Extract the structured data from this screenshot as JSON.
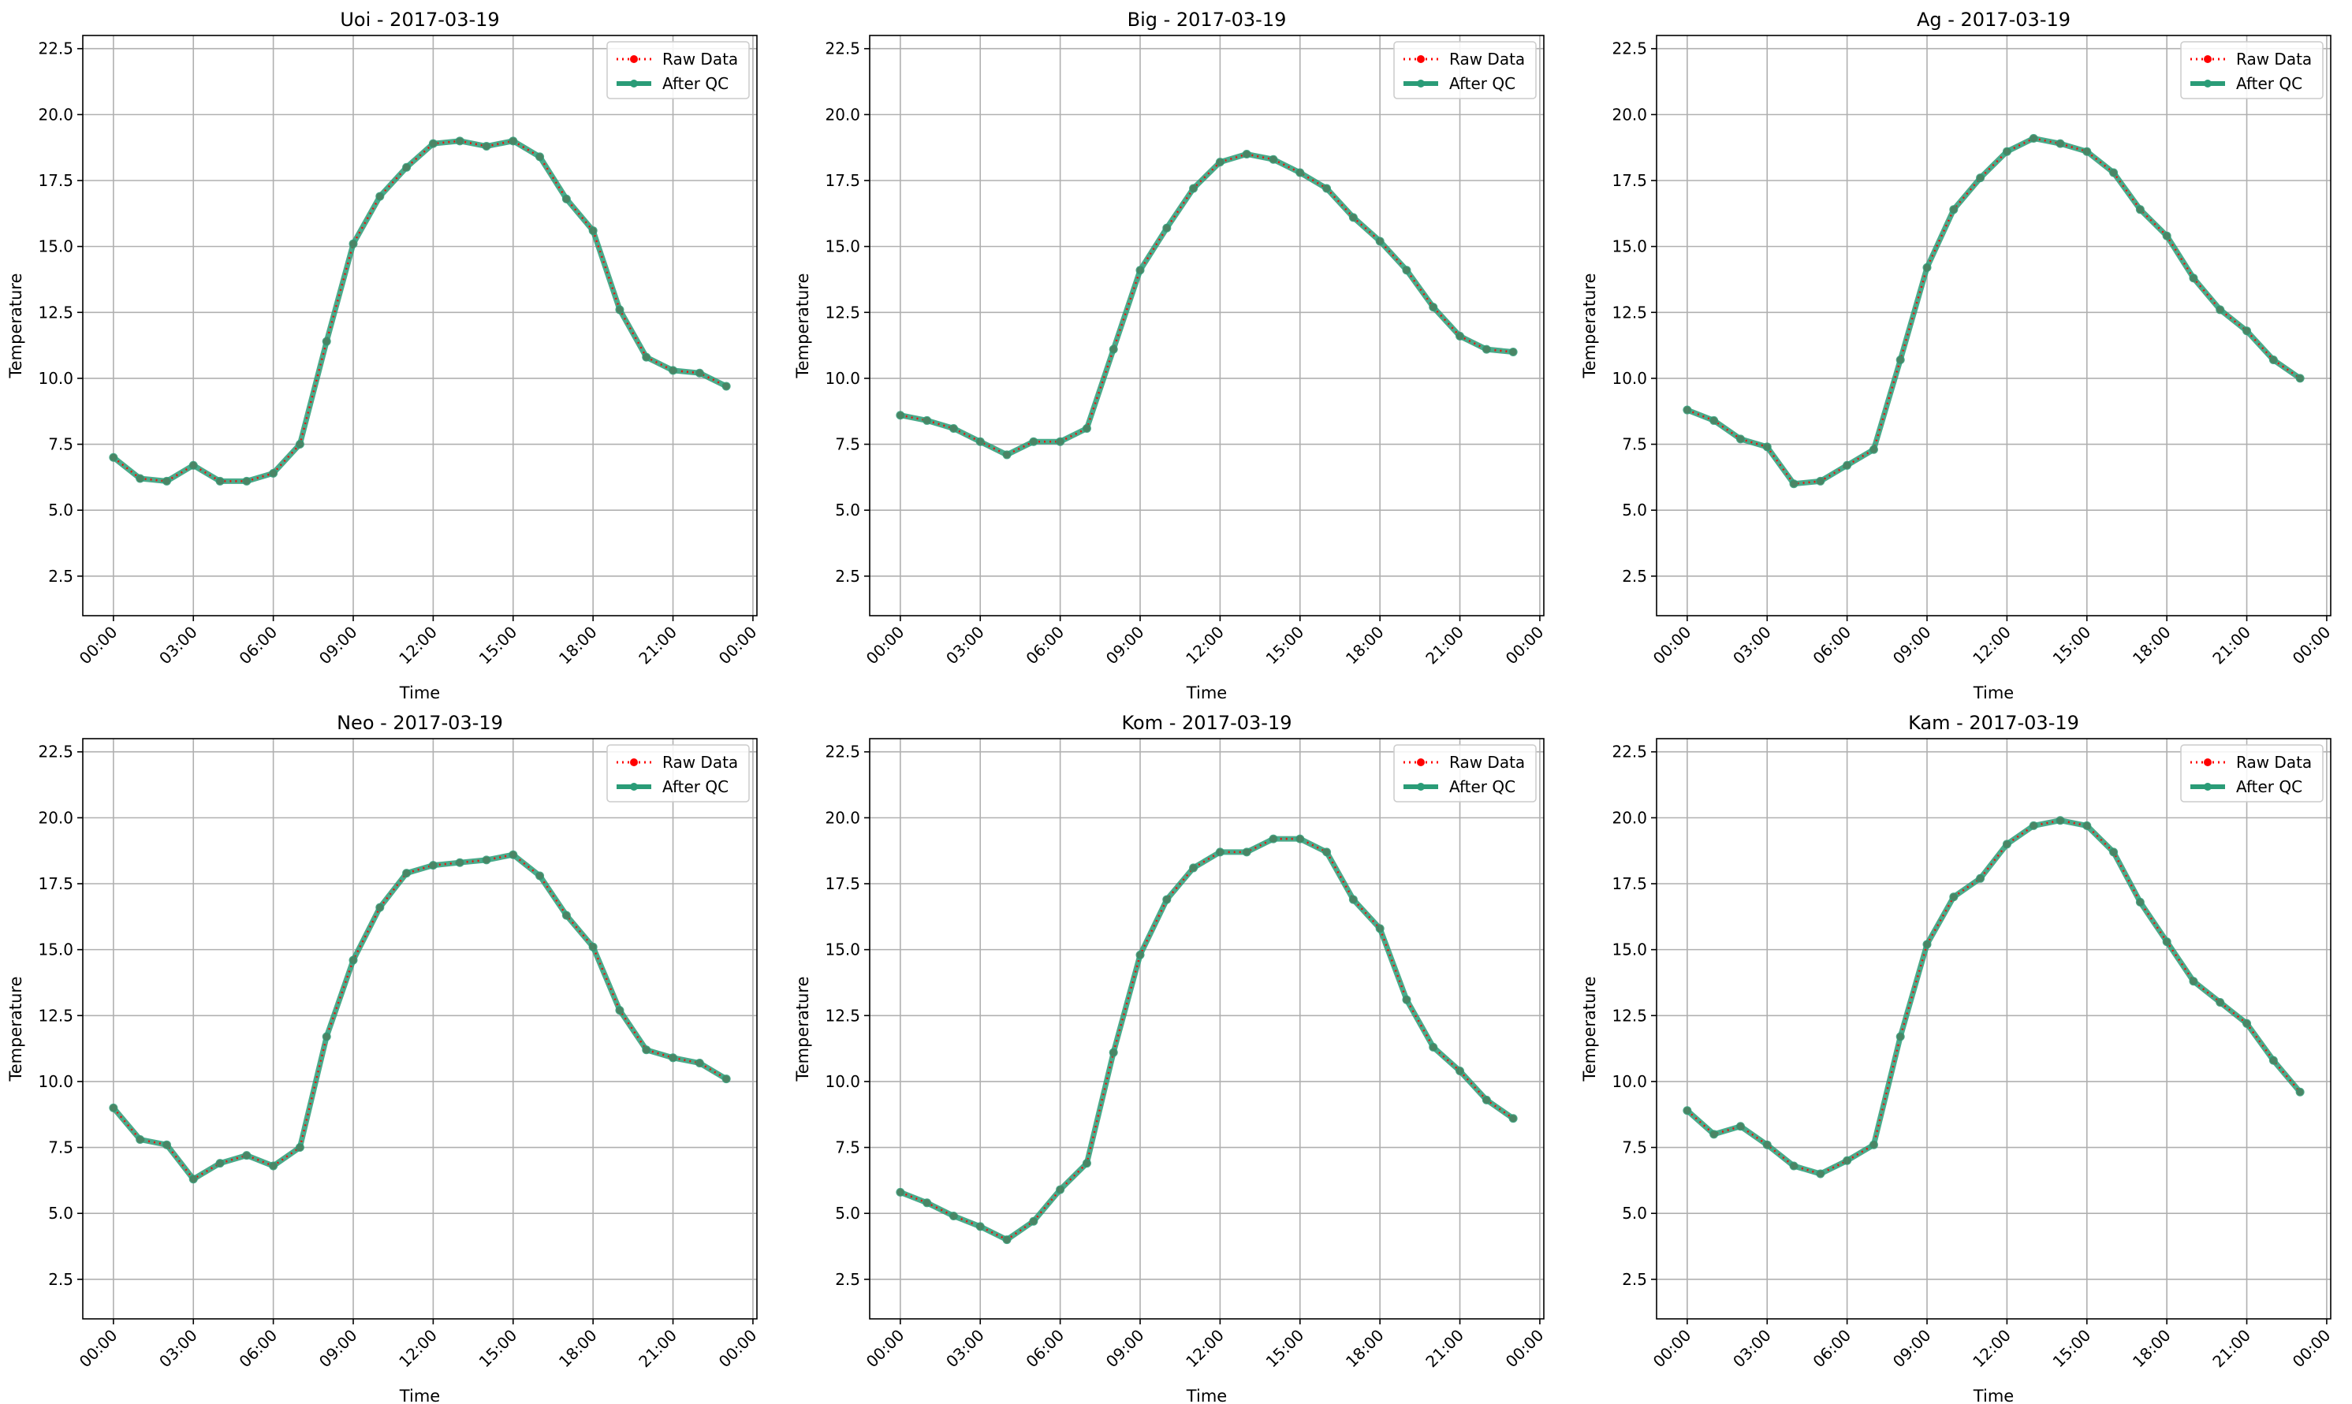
{
  "figure": {
    "layout": "2x3 grid of line charts"
  },
  "legend": {
    "raw_label": "Raw Data",
    "qc_label": "After QC",
    "placement": "upper-right"
  },
  "colors": {
    "raw": "#ff0000",
    "qc": "#2a9c77",
    "grid": "#b0b0b0",
    "axis": "#000000"
  },
  "chart_data": [
    {
      "type": "line",
      "title": "Uoi - 2017-03-19",
      "xlabel": "Time",
      "ylabel": "Temperature",
      "x_hours": [
        0,
        1,
        2,
        3,
        4,
        5,
        6,
        7,
        8,
        9,
        10,
        11,
        12,
        13,
        14,
        15,
        16,
        17,
        18,
        19,
        20,
        21,
        22,
        23
      ],
      "xticks": [
        "00:00",
        "03:00",
        "06:00",
        "09:00",
        "12:00",
        "15:00",
        "18:00",
        "21:00",
        "00:00"
      ],
      "yticks": [
        "2.5",
        "5.0",
        "7.5",
        "10.0",
        "12.5",
        "15.0",
        "17.5",
        "20.0",
        "22.5"
      ],
      "ylim": [
        1.0,
        23.0
      ],
      "xlim_hours": [
        -1.15,
        24.15
      ],
      "grid": true,
      "series": [
        {
          "name": "Raw Data",
          "values": [
            7.0,
            6.2,
            6.1,
            6.7,
            6.1,
            6.1,
            6.4,
            7.5,
            11.4,
            15.1,
            16.9,
            18.0,
            18.9,
            19.0,
            18.8,
            19.0,
            18.4,
            16.8,
            15.6,
            12.6,
            10.8,
            10.3,
            10.2,
            9.7
          ]
        },
        {
          "name": "After QC",
          "values": [
            7.0,
            6.2,
            6.1,
            6.7,
            6.1,
            6.1,
            6.4,
            7.5,
            11.4,
            15.1,
            16.9,
            18.0,
            18.9,
            19.0,
            18.8,
            19.0,
            18.4,
            16.8,
            15.6,
            12.6,
            10.8,
            10.3,
            10.2,
            9.7
          ]
        }
      ]
    },
    {
      "type": "line",
      "title": "Big - 2017-03-19",
      "xlabel": "Time",
      "ylabel": "Temperature",
      "x_hours": [
        0,
        1,
        2,
        3,
        4,
        5,
        6,
        7,
        8,
        9,
        10,
        11,
        12,
        13,
        14,
        15,
        16,
        17,
        18,
        19,
        20,
        21,
        22,
        23
      ],
      "xticks": [
        "00:00",
        "03:00",
        "06:00",
        "09:00",
        "12:00",
        "15:00",
        "18:00",
        "21:00",
        "00:00"
      ],
      "yticks": [
        "2.5",
        "5.0",
        "7.5",
        "10.0",
        "12.5",
        "15.0",
        "17.5",
        "20.0",
        "22.5"
      ],
      "ylim": [
        1.0,
        23.0
      ],
      "xlim_hours": [
        -1.15,
        24.15
      ],
      "grid": true,
      "series": [
        {
          "name": "Raw Data",
          "values": [
            8.6,
            8.4,
            8.1,
            7.6,
            7.1,
            7.6,
            7.6,
            8.1,
            11.1,
            14.1,
            15.7,
            17.2,
            18.2,
            18.5,
            18.3,
            17.8,
            17.2,
            16.1,
            15.2,
            14.1,
            12.7,
            11.6,
            11.1,
            11.0
          ]
        },
        {
          "name": "After QC",
          "values": [
            8.6,
            8.4,
            8.1,
            7.6,
            7.1,
            7.6,
            7.6,
            8.1,
            11.1,
            14.1,
            15.7,
            17.2,
            18.2,
            18.5,
            18.3,
            17.8,
            17.2,
            16.1,
            15.2,
            14.1,
            12.7,
            11.6,
            11.1,
            11.0
          ]
        }
      ]
    },
    {
      "type": "line",
      "title": "Ag - 2017-03-19",
      "xlabel": "Time",
      "ylabel": "Temperature",
      "x_hours": [
        0,
        1,
        2,
        3,
        4,
        5,
        6,
        7,
        8,
        9,
        10,
        11,
        12,
        13,
        14,
        15,
        16,
        17,
        18,
        19,
        20,
        21,
        22,
        23
      ],
      "xticks": [
        "00:00",
        "03:00",
        "06:00",
        "09:00",
        "12:00",
        "15:00",
        "18:00",
        "21:00",
        "00:00"
      ],
      "yticks": [
        "2.5",
        "5.0",
        "7.5",
        "10.0",
        "12.5",
        "15.0",
        "17.5",
        "20.0",
        "22.5"
      ],
      "ylim": [
        1.0,
        23.0
      ],
      "xlim_hours": [
        -1.15,
        24.15
      ],
      "grid": true,
      "series": [
        {
          "name": "Raw Data",
          "values": [
            8.8,
            8.4,
            7.7,
            7.4,
            6.0,
            6.1,
            6.7,
            7.3,
            10.7,
            14.2,
            16.4,
            17.6,
            18.6,
            19.1,
            18.9,
            18.6,
            17.8,
            16.4,
            15.4,
            13.8,
            12.6,
            11.8,
            10.7,
            10.0
          ]
        },
        {
          "name": "After QC",
          "values": [
            8.8,
            8.4,
            7.7,
            7.4,
            6.0,
            6.1,
            6.7,
            7.3,
            10.7,
            14.2,
            16.4,
            17.6,
            18.6,
            19.1,
            18.9,
            18.6,
            17.8,
            16.4,
            15.4,
            13.8,
            12.6,
            11.8,
            10.7,
            10.0
          ]
        }
      ]
    },
    {
      "type": "line",
      "title": "Neo - 2017-03-19",
      "xlabel": "Time",
      "ylabel": "Temperature",
      "x_hours": [
        0,
        1,
        2,
        3,
        4,
        5,
        6,
        7,
        8,
        9,
        10,
        11,
        12,
        13,
        14,
        15,
        16,
        17,
        18,
        19,
        20,
        21,
        22,
        23
      ],
      "xticks": [
        "00:00",
        "03:00",
        "06:00",
        "09:00",
        "12:00",
        "15:00",
        "18:00",
        "21:00",
        "00:00"
      ],
      "yticks": [
        "2.5",
        "5.0",
        "7.5",
        "10.0",
        "12.5",
        "15.0",
        "17.5",
        "20.0",
        "22.5"
      ],
      "ylim": [
        1.0,
        23.0
      ],
      "xlim_hours": [
        -1.15,
        24.15
      ],
      "grid": true,
      "series": [
        {
          "name": "Raw Data",
          "values": [
            9.0,
            7.8,
            7.6,
            6.3,
            6.9,
            7.2,
            6.8,
            7.5,
            11.7,
            14.6,
            16.6,
            17.9,
            18.2,
            18.3,
            18.4,
            18.6,
            17.8,
            16.3,
            15.1,
            12.7,
            11.2,
            10.9,
            10.7,
            10.1
          ]
        },
        {
          "name": "After QC",
          "values": [
            9.0,
            7.8,
            7.6,
            6.3,
            6.9,
            7.2,
            6.8,
            7.5,
            11.7,
            14.6,
            16.6,
            17.9,
            18.2,
            18.3,
            18.4,
            18.6,
            17.8,
            16.3,
            15.1,
            12.7,
            11.2,
            10.9,
            10.7,
            10.1
          ]
        }
      ]
    },
    {
      "type": "line",
      "title": "Kom - 2017-03-19",
      "xlabel": "Time",
      "ylabel": "Temperature",
      "x_hours": [
        0,
        1,
        2,
        3,
        4,
        5,
        6,
        7,
        8,
        9,
        10,
        11,
        12,
        13,
        14,
        15,
        16,
        17,
        18,
        19,
        20,
        21,
        22,
        23
      ],
      "xticks": [
        "00:00",
        "03:00",
        "06:00",
        "09:00",
        "12:00",
        "15:00",
        "18:00",
        "21:00",
        "00:00"
      ],
      "yticks": [
        "2.5",
        "5.0",
        "7.5",
        "10.0",
        "12.5",
        "15.0",
        "17.5",
        "20.0",
        "22.5"
      ],
      "ylim": [
        1.0,
        23.0
      ],
      "xlim_hours": [
        -1.15,
        24.15
      ],
      "grid": true,
      "series": [
        {
          "name": "Raw Data",
          "values": [
            5.8,
            5.4,
            4.9,
            4.5,
            4.0,
            4.7,
            5.9,
            6.9,
            11.1,
            14.8,
            16.9,
            18.1,
            18.7,
            18.7,
            19.2,
            19.2,
            18.7,
            16.9,
            15.8,
            13.1,
            11.3,
            10.4,
            9.3,
            8.6
          ]
        },
        {
          "name": "After QC",
          "values": [
            5.8,
            5.4,
            4.9,
            4.5,
            4.0,
            4.7,
            5.9,
            6.9,
            11.1,
            14.8,
            16.9,
            18.1,
            18.7,
            18.7,
            19.2,
            19.2,
            18.7,
            16.9,
            15.8,
            13.1,
            11.3,
            10.4,
            9.3,
            8.6
          ]
        }
      ]
    },
    {
      "type": "line",
      "title": "Kam - 2017-03-19",
      "xlabel": "Time",
      "ylabel": "Temperature",
      "x_hours": [
        0,
        1,
        2,
        3,
        4,
        5,
        6,
        7,
        8,
        9,
        10,
        11,
        12,
        13,
        14,
        15,
        16,
        17,
        18,
        19,
        20,
        21,
        22,
        23
      ],
      "xticks": [
        "00:00",
        "03:00",
        "06:00",
        "09:00",
        "12:00",
        "15:00",
        "18:00",
        "21:00",
        "00:00"
      ],
      "yticks": [
        "2.5",
        "5.0",
        "7.5",
        "10.0",
        "12.5",
        "15.0",
        "17.5",
        "20.0",
        "22.5"
      ],
      "ylim": [
        1.0,
        23.0
      ],
      "xlim_hours": [
        -1.15,
        24.15
      ],
      "grid": true,
      "series": [
        {
          "name": "Raw Data",
          "values": [
            8.9,
            8.0,
            8.3,
            7.6,
            6.8,
            6.5,
            7.0,
            7.6,
            11.7,
            15.2,
            17.0,
            17.7,
            19.0,
            19.7,
            19.9,
            19.7,
            18.7,
            16.8,
            15.3,
            13.8,
            13.0,
            12.2,
            10.8,
            9.6
          ]
        },
        {
          "name": "After QC",
          "values": [
            8.9,
            8.0,
            8.3,
            7.6,
            6.8,
            6.5,
            7.0,
            7.6,
            11.7,
            15.2,
            17.0,
            17.7,
            19.0,
            19.7,
            19.9,
            19.7,
            18.7,
            16.8,
            15.3,
            13.8,
            13.0,
            12.2,
            10.8,
            9.6
          ]
        }
      ]
    }
  ]
}
